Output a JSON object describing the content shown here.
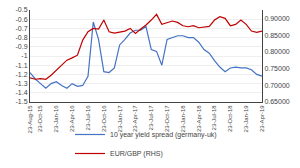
{
  "chart_data": {
    "type": "line",
    "categories": [
      "23-Aug-15",
      null,
      "23-Oct-15",
      null,
      null,
      "23-Jan-16",
      null,
      null,
      "23-Apr-16",
      null,
      null,
      "23-Jul-16",
      null,
      null,
      "23-Oct-16",
      null,
      null,
      "23-Jan-17",
      null,
      null,
      "23-Apr-17",
      null,
      null,
      "23-Jul-17",
      null,
      null,
      "23-Oct-17",
      null,
      null,
      "23-Jan-18",
      null,
      null,
      "23-Apr-18",
      null,
      null,
      "23-Jul-18",
      null,
      null,
      "23-Oct-18",
      null,
      null,
      "23-Jan-19",
      null,
      null,
      "23-Apr-19"
    ],
    "series": [
      {
        "name": "10 year yield spread (germany-uk)",
        "color": "#4472c4",
        "values": [
          -1.18,
          -1.25,
          -1.3,
          -1.35,
          -1.3,
          -1.28,
          -1.32,
          -1.35,
          -1.3,
          -1.33,
          -1.32,
          -1.22,
          -0.63,
          -0.82,
          -1.17,
          -1.18,
          -1.13,
          -0.88,
          -0.82,
          -0.75,
          -0.72,
          -0.72,
          -0.68,
          -0.93,
          -0.95,
          -1.1,
          -0.82,
          -0.8,
          -0.78,
          -0.78,
          -0.8,
          -0.8,
          -0.85,
          -0.93,
          -0.97,
          -1.05,
          -1.12,
          -1.17,
          -1.13,
          -1.12,
          -1.13,
          -1.13,
          -1.15,
          -1.2,
          -1.22
        ]
      },
      {
        "name": "EUR/GBP (RHS)",
        "color": "#c00000",
        "axis": "y2",
        "values": [
          0.722,
          0.718,
          0.72,
          0.718,
          0.73,
          0.745,
          0.758,
          0.775,
          0.782,
          0.79,
          0.835,
          0.86,
          0.87,
          0.868,
          0.895,
          0.86,
          0.856,
          0.858,
          0.862,
          0.87,
          0.855,
          0.868,
          0.88,
          0.895,
          0.912,
          0.882,
          0.888,
          0.892,
          0.888,
          0.878,
          0.875,
          0.878,
          0.872,
          0.875,
          0.876,
          0.895,
          0.905,
          0.9,
          0.878,
          0.882,
          0.895,
          0.882,
          0.862,
          0.858,
          0.862
        ]
      }
    ],
    "ylim": [
      -1.5,
      -0.5
    ],
    "yticks": [
      -1.5,
      -1.4,
      -1.3,
      -1.2,
      -1.1,
      -1,
      -0.9,
      -0.8,
      -0.7,
      -0.6,
      -0.5
    ],
    "y2lim": [
      0.65,
      0.925
    ],
    "y2ticks": [
      {
        "value": 0.65,
        "label": "0.65000"
      },
      {
        "value": 0.7,
        "label": "0.70000"
      },
      {
        "value": 0.75,
        "label": "0.75000"
      },
      {
        "value": 0.8,
        "label": "0.80000"
      },
      {
        "value": 0.85,
        "label": "0.85000"
      },
      {
        "value": 0.9,
        "label": "0.90000"
      }
    ],
    "grid": true,
    "legend": "bottom"
  }
}
